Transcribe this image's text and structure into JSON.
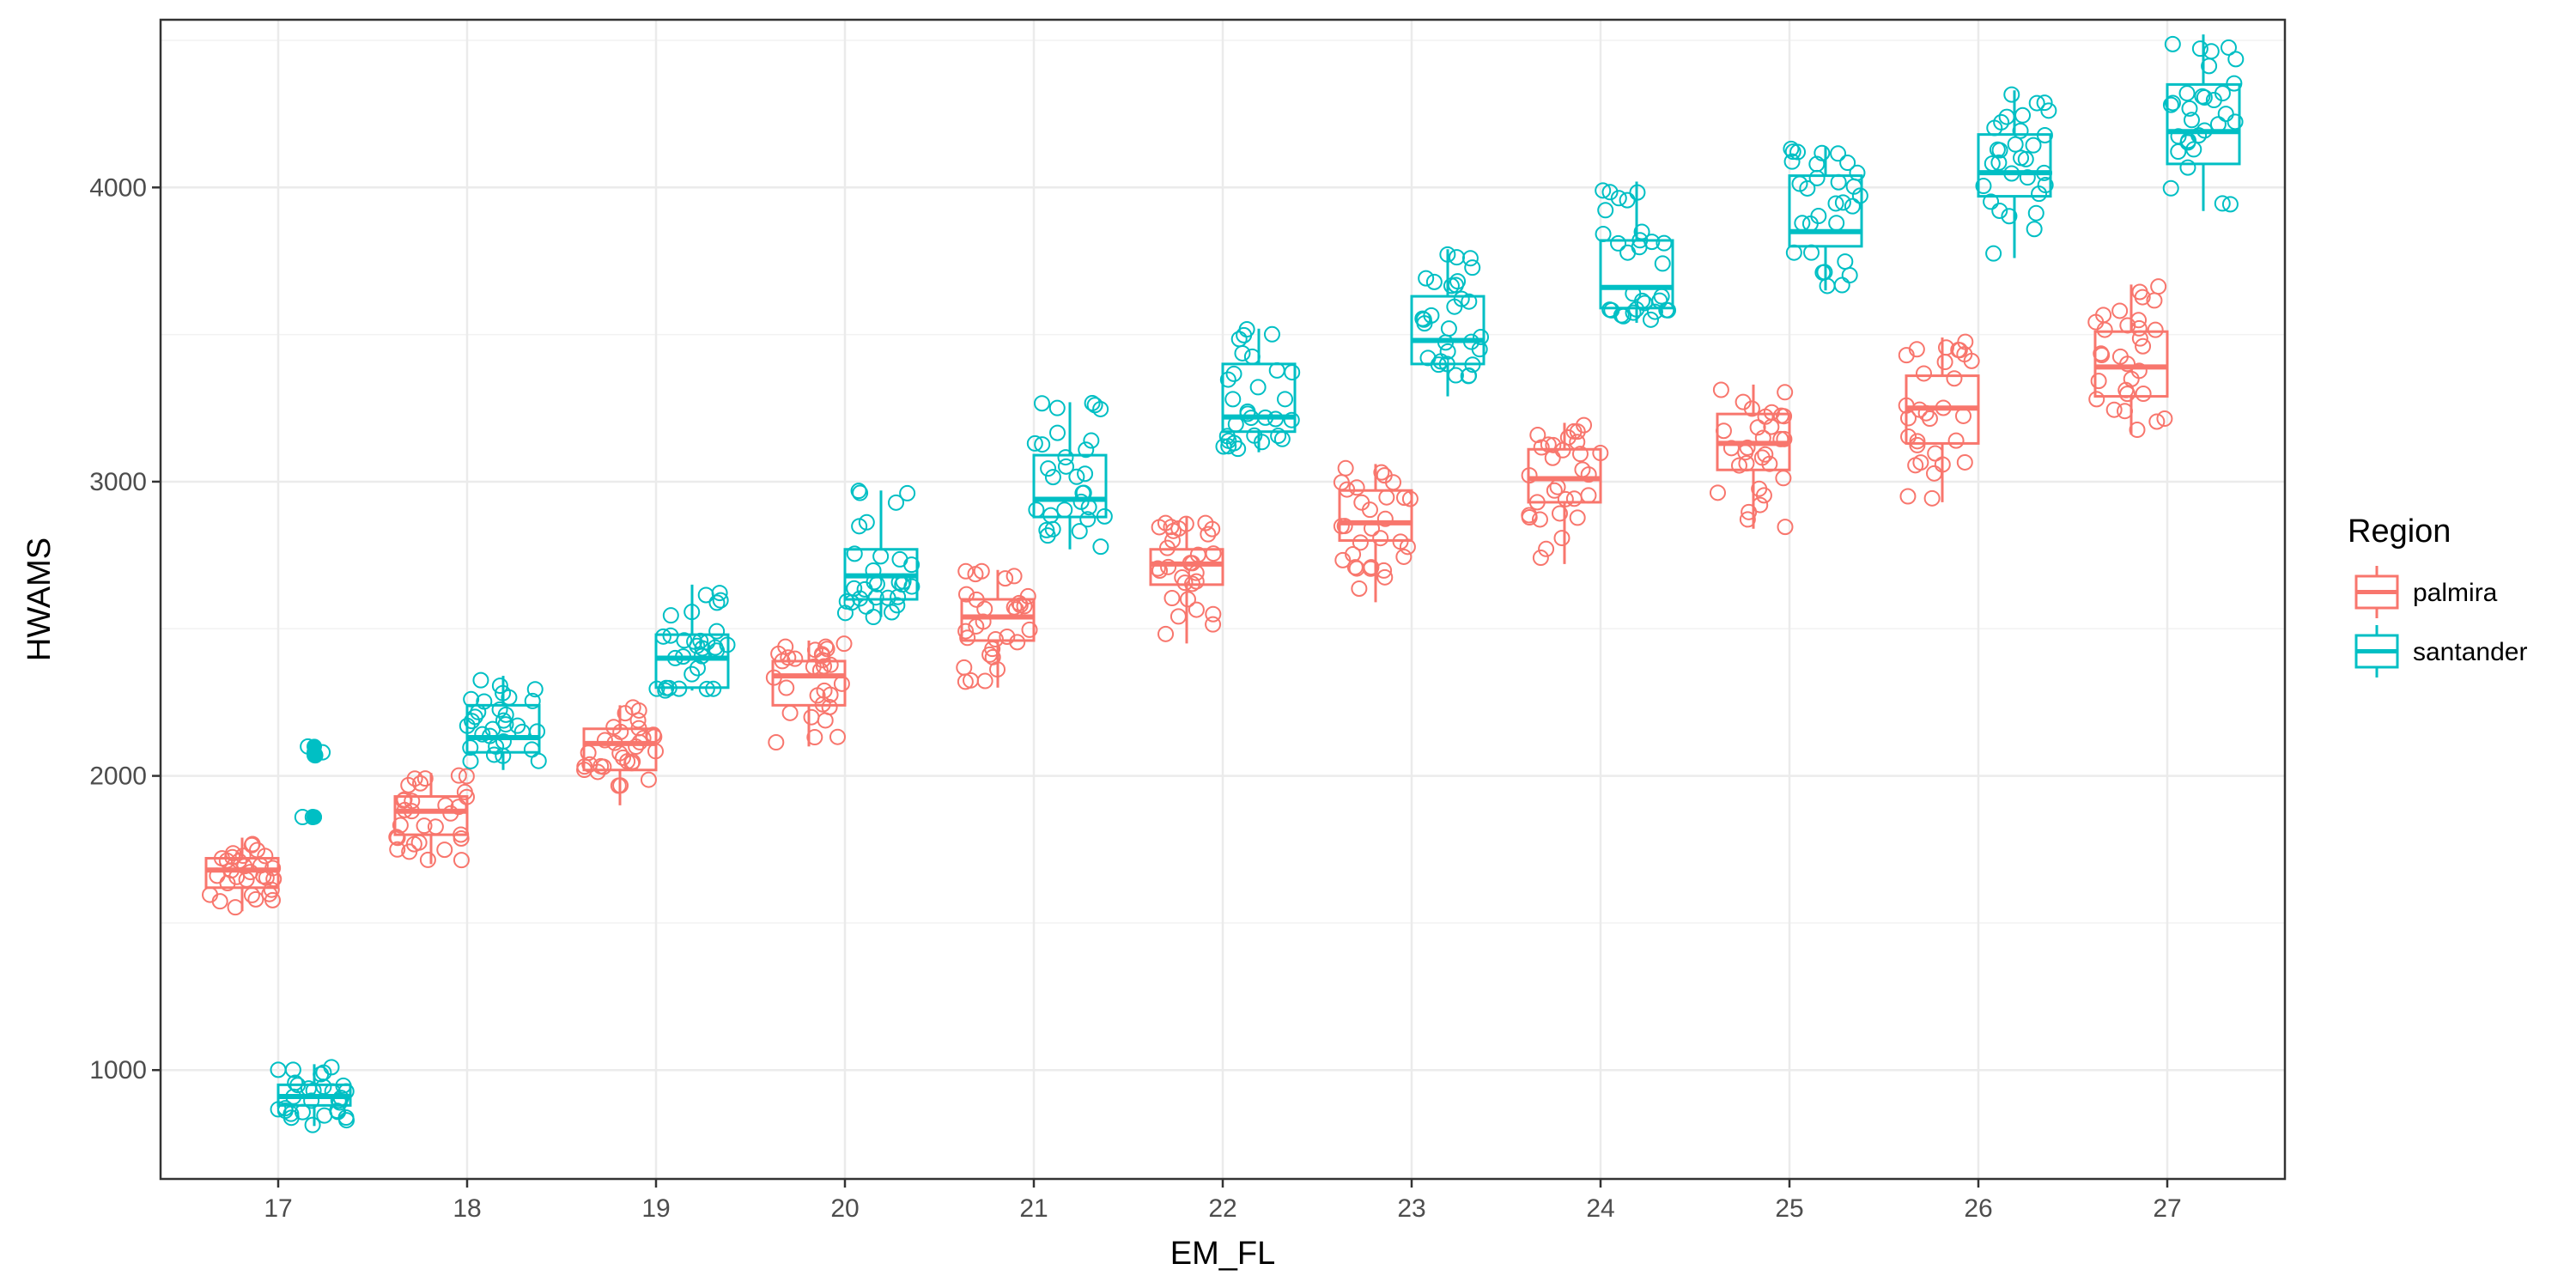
{
  "chart_data": {
    "type": "boxplot",
    "xlabel": "EM_FL",
    "ylabel": "HWAMS",
    "categories": [
      "17",
      "18",
      "19",
      "20",
      "21",
      "22",
      "23",
      "24",
      "25",
      "26",
      "27"
    ],
    "ylim": [
      630,
      4570
    ],
    "y_ticks": [
      1000,
      2000,
      3000,
      4000
    ],
    "grid": true,
    "legend": {
      "title": "Region",
      "placement": "right"
    },
    "series": [
      {
        "name": "palmira",
        "color": "#F8766D",
        "boxes": [
          {
            "q1": 1620,
            "median": 1680,
            "q3": 1720,
            "whisker_low": 1540,
            "whisker_high": 1790
          },
          {
            "q1": 1800,
            "median": 1880,
            "q3": 1930,
            "whisker_low": 1700,
            "whisker_high": 2010
          },
          {
            "q1": 2020,
            "median": 2110,
            "q3": 2160,
            "whisker_low": 1900,
            "whisker_high": 2240
          },
          {
            "q1": 2240,
            "median": 2340,
            "q3": 2390,
            "whisker_low": 2100,
            "whisker_high": 2460
          },
          {
            "q1": 2460,
            "median": 2540,
            "q3": 2600,
            "whisker_low": 2300,
            "whisker_high": 2700
          },
          {
            "q1": 2650,
            "median": 2720,
            "q3": 2770,
            "whisker_low": 2450,
            "whisker_high": 2880
          },
          {
            "q1": 2800,
            "median": 2860,
            "q3": 2970,
            "whisker_low": 2590,
            "whisker_high": 3060
          },
          {
            "q1": 2930,
            "median": 3010,
            "q3": 3110,
            "whisker_low": 2720,
            "whisker_high": 3200
          },
          {
            "q1": 3040,
            "median": 3130,
            "q3": 3230,
            "whisker_low": 2840,
            "whisker_high": 3330
          },
          {
            "q1": 3130,
            "median": 3250,
            "q3": 3360,
            "whisker_low": 2930,
            "whisker_high": 3490
          },
          {
            "q1": 3290,
            "median": 3390,
            "q3": 3510,
            "whisker_low": 3160,
            "whisker_high": 3670
          }
        ]
      },
      {
        "name": "santander",
        "color": "#00BFC4",
        "boxes": [
          {
            "q1": 880,
            "median": 910,
            "q3": 950,
            "whisker_low": 810,
            "whisker_high": 1020,
            "outliers": [
              1860,
              2080,
              2100,
              2070,
              1860
            ]
          },
          {
            "q1": 2080,
            "median": 2130,
            "q3": 2240,
            "whisker_low": 2020,
            "whisker_high": 2340
          },
          {
            "q1": 2300,
            "median": 2400,
            "q3": 2480,
            "whisker_low": 2290,
            "whisker_high": 2650
          },
          {
            "q1": 2600,
            "median": 2680,
            "q3": 2770,
            "whisker_low": 2540,
            "whisker_high": 2970
          },
          {
            "q1": 2880,
            "median": 2940,
            "q3": 3090,
            "whisker_low": 2770,
            "whisker_high": 3270
          },
          {
            "q1": 3170,
            "median": 3220,
            "q3": 3400,
            "whisker_low": 3100,
            "whisker_high": 3520
          },
          {
            "q1": 3400,
            "median": 3480,
            "q3": 3630,
            "whisker_low": 3290,
            "whisker_high": 3790
          },
          {
            "q1": 3590,
            "median": 3660,
            "q3": 3820,
            "whisker_low": 3540,
            "whisker_high": 4020
          },
          {
            "q1": 3800,
            "median": 3850,
            "q3": 4040,
            "whisker_low": 3650,
            "whisker_high": 4140
          },
          {
            "q1": 3970,
            "median": 4050,
            "q3": 4180,
            "whisker_low": 3760,
            "whisker_high": 4330
          },
          {
            "q1": 4080,
            "median": 4190,
            "q3": 4350,
            "whisker_low": 3920,
            "whisker_high": 4520
          }
        ]
      }
    ]
  }
}
